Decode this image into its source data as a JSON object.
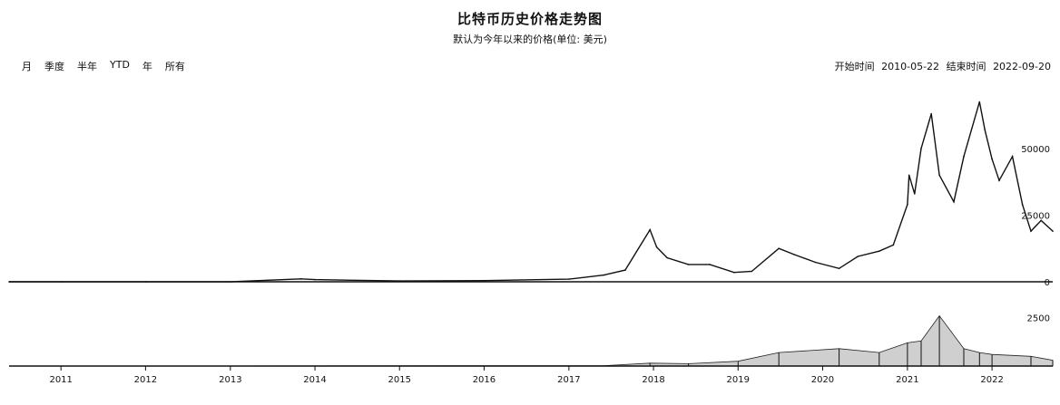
{
  "header": {
    "title": "比特币历史价格走势图",
    "subtitle": "默认为今年以来的价格(单位: 美元)"
  },
  "ranges": [
    "月",
    "季度",
    "半年",
    "YTD",
    "年",
    "所有"
  ],
  "date_range": {
    "start_label": "开始时间",
    "start_value": "2010-05-22",
    "end_label": "结束时间",
    "end_value": "2022-09-20"
  },
  "chart_data": [
    {
      "type": "line",
      "title": "",
      "series": [
        {
          "x": [
            "2010-05-22",
            "2011-01-01",
            "2012-01-01",
            "2013-01-01",
            "2013-11-01",
            "2014-01-01",
            "2015-01-01",
            "2016-01-01",
            "2017-01-01",
            "2017-06-01",
            "2017-09-01",
            "2017-12-17",
            "2018-01-15",
            "2018-03-01",
            "2018-06-01",
            "2018-09-01",
            "2018-12-15",
            "2019-03-01",
            "2019-06-26",
            "2019-09-01",
            "2019-12-01",
            "2020-03-12",
            "2020-06-01",
            "2020-09-01",
            "2020-11-01",
            "2021-01-01",
            "2021-01-08",
            "2021-02-01",
            "2021-03-01",
            "2021-04-14",
            "2021-05-19",
            "2021-07-20",
            "2021-09-01",
            "2021-11-08",
            "2021-12-01",
            "2022-01-01",
            "2022-02-01",
            "2022-03-30",
            "2022-05-12",
            "2022-06-18",
            "2022-08-01",
            "2022-09-20"
          ],
          "values": [
            0,
            1,
            5,
            13,
            1100,
            800,
            300,
            430,
            1000,
            2500,
            4400,
            19500,
            13000,
            9000,
            6500,
            6500,
            3500,
            3900,
            12500,
            10200,
            7300,
            5000,
            9500,
            11500,
            13800,
            29000,
            40000,
            33000,
            50000,
            63000,
            40000,
            30000,
            47000,
            67500,
            57000,
            46000,
            38000,
            47000,
            29000,
            19000,
            23000,
            19000
          ]
        }
      ],
      "ylim": [
        0,
        70000
      ],
      "yticks": [
        "50000",
        "25000",
        "0"
      ],
      "ytick_values": [
        50000,
        25000,
        0
      ],
      "grid": false
    },
    {
      "type": "area",
      "title": "",
      "series": [
        {
          "x": [
            "2010-05-22",
            "2017-06-01",
            "2017-12-17",
            "2018-06-01",
            "2019-01-01",
            "2019-06-26",
            "2020-03-12",
            "2020-09-01",
            "2021-01-01",
            "2021-03-01",
            "2021-05-19",
            "2021-09-01",
            "2021-11-08",
            "2022-01-01",
            "2022-06-18",
            "2022-09-20"
          ],
          "values": [
            0,
            20,
            150,
            120,
            250,
            700,
            900,
            700,
            1200,
            1300,
            2600,
            900,
            700,
            600,
            500,
            300
          ]
        }
      ],
      "ylim": [
        0,
        3000
      ],
      "yticks": [
        "2500"
      ],
      "ytick_values": [
        2500
      ]
    }
  ],
  "xaxis": {
    "ticks": [
      "2011",
      "2012",
      "2013",
      "2014",
      "2015",
      "2016",
      "2017",
      "2018",
      "2019",
      "2020",
      "2021",
      "2022"
    ]
  }
}
